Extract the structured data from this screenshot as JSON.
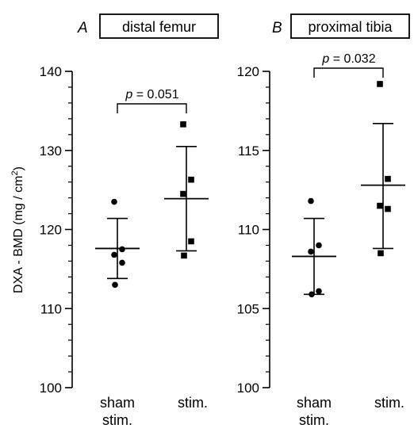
{
  "colors": {
    "ink": "#000000",
    "background": "#ffffff"
  },
  "y_axis_label": "DXA - BMD (mg / cm",
  "y_axis_label_sup": "2",
  "y_axis_label_end": ")",
  "chart_data": [
    {
      "type": "scatter",
      "panel_letter": "A",
      "title": "distal femur",
      "categories": [
        "sham stim.",
        "stim."
      ],
      "category_lines": [
        [
          "sham",
          "stim."
        ],
        [
          "stim."
        ]
      ],
      "ylim": [
        100,
        140
      ],
      "yticks": [
        100,
        110,
        120,
        130,
        140
      ],
      "markers": [
        "circle",
        "square"
      ],
      "series": [
        {
          "name": "sham stim.",
          "values": [
            123.5,
            117.5,
            116.8,
            115.8,
            113.0
          ],
          "mean": 117.6,
          "sd_upper": 121.4,
          "sd_lower": 113.8
        },
        {
          "name": "stim.",
          "values": [
            133.3,
            126.3,
            124.5,
            118.5,
            116.7
          ],
          "mean": 123.9,
          "sd_upper": 130.5,
          "sd_lower": 117.3
        }
      ],
      "annotation": {
        "label_prefix": "p",
        "label_value": " = 0.051"
      }
    },
    {
      "type": "scatter",
      "panel_letter": "B",
      "title": "proximal tibia",
      "categories": [
        "sham stim.",
        "stim."
      ],
      "category_lines": [
        [
          "sham",
          "stim."
        ],
        [
          "stim."
        ]
      ],
      "ylim": [
        100,
        120
      ],
      "yticks": [
        100,
        105,
        110,
        115,
        120
      ],
      "markers": [
        "circle",
        "square"
      ],
      "series": [
        {
          "name": "sham stim.",
          "values": [
            111.8,
            109.0,
            108.6,
            106.1,
            105.9
          ],
          "mean": 108.3,
          "sd_upper": 110.7,
          "sd_lower": 105.9
        },
        {
          "name": "stim.",
          "values": [
            119.2,
            113.2,
            111.5,
            111.3,
            108.5
          ],
          "mean": 112.8,
          "sd_upper": 116.7,
          "sd_lower": 108.8
        }
      ],
      "annotation": {
        "label_prefix": "p",
        "label_value": " = 0.032"
      }
    }
  ]
}
